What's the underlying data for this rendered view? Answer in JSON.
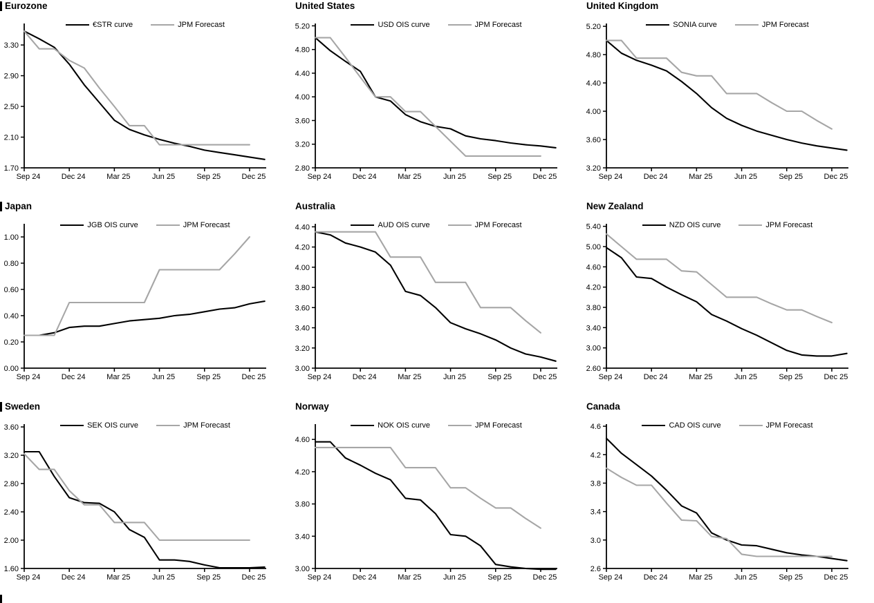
{
  "page": {
    "background": "#ffffff",
    "axis_color": "#000000",
    "ois_line_color": "#000000",
    "forecast_line_color": "#a6a6a6",
    "has_bottom_left_section_stub": true
  },
  "chart_data": [
    {
      "type": "line",
      "title": "Eurozone",
      "has_left_marker": true,
      "x_tick_labels": [
        "Sep 24",
        "Dec 24",
        "Mar 25",
        "Jun 25",
        "Sep 25",
        "Dec 25"
      ],
      "x_tick_months": [
        0,
        3,
        6,
        9,
        12,
        15
      ],
      "y_ticks": [
        1.7,
        2.1,
        2.5,
        2.9,
        3.3
      ],
      "y_decimals": 2,
      "y_axis_min": 1.7,
      "y_axis_top": 3.58,
      "legend_position": "top-center",
      "grid": false,
      "series": [
        {
          "name": "€STR curve",
          "color": "#000000",
          "monthly_values": [
            3.48,
            3.38,
            3.27,
            3.05,
            2.78,
            2.55,
            2.32,
            2.2,
            2.13,
            2.07,
            2.02,
            1.98,
            1.93,
            1.9,
            1.87,
            1.84,
            1.81
          ]
        },
        {
          "name": "JPM Forecast",
          "color": "#a6a6a6",
          "monthly_values": [
            3.48,
            3.25,
            3.25,
            3.1,
            3.0,
            2.74,
            2.5,
            2.25,
            2.25,
            2.0,
            2.0,
            2.0,
            2.0,
            2.0,
            2.0,
            2.0
          ]
        }
      ]
    },
    {
      "type": "line",
      "title": "United States",
      "has_left_marker": false,
      "x_tick_labels": [
        "Sep 24",
        "Dec 24",
        "Mar 25",
        "Jun 25",
        "Sep 25",
        "Dec 25"
      ],
      "x_tick_months": [
        0,
        3,
        6,
        9,
        12,
        15
      ],
      "y_ticks": [
        2.8,
        3.2,
        3.6,
        4.0,
        4.4,
        4.8,
        5.2
      ],
      "y_decimals": 2,
      "y_axis_min": 2.8,
      "y_axis_top": 5.24,
      "legend_position": "top-center",
      "grid": false,
      "series": [
        {
          "name": "USD OIS curve",
          "color": "#000000",
          "monthly_values": [
            5.0,
            4.78,
            4.6,
            4.43,
            4.0,
            3.93,
            3.7,
            3.58,
            3.5,
            3.46,
            3.34,
            3.29,
            3.26,
            3.22,
            3.19,
            3.17,
            3.14
          ]
        },
        {
          "name": "JPM Forecast",
          "color": "#a6a6a6",
          "monthly_values": [
            5.0,
            5.0,
            4.67,
            4.33,
            4.0,
            4.0,
            3.75,
            3.75,
            3.5,
            3.25,
            3.0,
            3.0,
            3.0,
            3.0,
            3.0,
            3.0
          ]
        }
      ]
    },
    {
      "type": "line",
      "title": "United Kingdom",
      "has_left_marker": false,
      "x_tick_labels": [
        "Sep 24",
        "Dec 24",
        "Mar 25",
        "Jun 25",
        "Sep 25",
        "Dec 25"
      ],
      "x_tick_months": [
        0,
        3,
        6,
        9,
        12,
        15
      ],
      "y_ticks": [
        3.2,
        3.6,
        4.0,
        4.4,
        4.8,
        5.2
      ],
      "y_decimals": 2,
      "y_axis_min": 3.2,
      "y_axis_top": 5.24,
      "legend_position": "top-center",
      "grid": false,
      "series": [
        {
          "name": "SONIA curve",
          "color": "#000000",
          "monthly_values": [
            5.0,
            4.82,
            4.72,
            4.65,
            4.57,
            4.42,
            4.25,
            4.05,
            3.9,
            3.8,
            3.72,
            3.66,
            3.6,
            3.55,
            3.51,
            3.48,
            3.45
          ]
        },
        {
          "name": "JPM Forecast",
          "color": "#a6a6a6",
          "monthly_values": [
            5.0,
            5.0,
            4.75,
            4.75,
            4.75,
            4.55,
            4.5,
            4.5,
            4.25,
            4.25,
            4.25,
            4.12,
            4.0,
            4.0,
            3.87,
            3.75
          ]
        }
      ]
    },
    {
      "type": "line",
      "title": "Japan",
      "has_left_marker": true,
      "x_tick_labels": [
        "Sep 24",
        "Dec 24",
        "Mar 25",
        "Jun 25",
        "Sep 25",
        "Dec 25"
      ],
      "x_tick_months": [
        0,
        3,
        6,
        9,
        12,
        15
      ],
      "y_ticks": [
        0.0,
        0.2,
        0.4,
        0.6,
        0.8,
        1.0
      ],
      "y_decimals": 2,
      "y_axis_min": 0.0,
      "y_axis_top": 1.1,
      "legend_position": "top-center",
      "grid": false,
      "series": [
        {
          "name": "JGB OIS curve",
          "color": "#000000",
          "monthly_values": [
            0.25,
            0.25,
            0.27,
            0.31,
            0.32,
            0.32,
            0.34,
            0.36,
            0.37,
            0.38,
            0.4,
            0.41,
            0.43,
            0.45,
            0.46,
            0.49,
            0.51
          ]
        },
        {
          "name": "JPM Forecast",
          "color": "#a6a6a6",
          "monthly_values": [
            0.25,
            0.25,
            0.25,
            0.5,
            0.5,
            0.5,
            0.5,
            0.5,
            0.5,
            0.75,
            0.75,
            0.75,
            0.75,
            0.75,
            0.87,
            1.0
          ]
        }
      ]
    },
    {
      "type": "line",
      "title": "Australia",
      "has_left_marker": false,
      "x_tick_labels": [
        "Sep 24",
        "Dec 24",
        "Mar 25",
        "Jun 25",
        "Sep 25",
        "Dec 25"
      ],
      "x_tick_months": [
        0,
        3,
        6,
        9,
        12,
        15
      ],
      "y_ticks": [
        3.0,
        3.2,
        3.4,
        3.6,
        3.8,
        4.0,
        4.2,
        4.4
      ],
      "y_decimals": 2,
      "y_axis_min": 3.0,
      "y_axis_top": 4.43,
      "legend_position": "top-center",
      "grid": false,
      "series": [
        {
          "name": "AUD OIS curve",
          "color": "#000000",
          "monthly_values": [
            4.35,
            4.32,
            4.24,
            4.2,
            4.15,
            4.02,
            3.76,
            3.72,
            3.6,
            3.45,
            3.39,
            3.34,
            3.28,
            3.2,
            3.14,
            3.11,
            3.07
          ]
        },
        {
          "name": "JPM Forecast",
          "color": "#a6a6a6",
          "monthly_values": [
            4.35,
            4.35,
            4.35,
            4.35,
            4.35,
            4.1,
            4.1,
            4.1,
            3.85,
            3.85,
            3.85,
            3.6,
            3.6,
            3.6,
            3.47,
            3.35
          ]
        }
      ]
    },
    {
      "type": "line",
      "title": "New Zealand",
      "has_left_marker": false,
      "x_tick_labels": [
        "Sep 24",
        "Dec 24",
        "Mar 25",
        "Jun 25",
        "Sep 25",
        "Dec 25"
      ],
      "x_tick_months": [
        0,
        3,
        6,
        9,
        12,
        15
      ],
      "y_ticks": [
        2.6,
        3.0,
        3.4,
        3.8,
        4.2,
        4.6,
        5.0,
        5.4
      ],
      "y_decimals": 2,
      "y_axis_min": 2.6,
      "y_axis_top": 5.45,
      "legend_position": "top-center",
      "grid": false,
      "series": [
        {
          "name": "NZD OIS curve",
          "color": "#000000",
          "monthly_values": [
            4.98,
            4.78,
            4.4,
            4.37,
            4.2,
            4.05,
            3.91,
            3.66,
            3.53,
            3.38,
            3.25,
            3.1,
            2.95,
            2.86,
            2.84,
            2.84,
            2.89
          ]
        },
        {
          "name": "JPM Forecast",
          "color": "#a6a6a6",
          "monthly_values": [
            5.25,
            5.0,
            4.75,
            4.75,
            4.75,
            4.52,
            4.5,
            4.25,
            4.0,
            4.0,
            4.0,
            3.87,
            3.75,
            3.75,
            3.62,
            3.5
          ]
        }
      ]
    },
    {
      "type": "line",
      "title": "Sweden",
      "has_left_marker": true,
      "x_tick_labels": [
        "Sep 24",
        "Dec 24",
        "Mar 25",
        "Jun 25",
        "Sep 25",
        "Dec 25"
      ],
      "x_tick_months": [
        0,
        3,
        6,
        9,
        12,
        15
      ],
      "y_ticks": [
        1.6,
        2.0,
        2.4,
        2.8,
        3.2,
        3.6
      ],
      "y_decimals": 2,
      "y_axis_min": 1.6,
      "y_axis_top": 3.64,
      "legend_position": "top-center",
      "grid": false,
      "series": [
        {
          "name": "SEK OIS curve",
          "color": "#000000",
          "monthly_values": [
            3.25,
            3.25,
            2.9,
            2.6,
            2.53,
            2.52,
            2.4,
            2.15,
            2.04,
            1.72,
            1.72,
            1.7,
            1.65,
            1.61,
            1.61,
            1.61,
            1.62
          ]
        },
        {
          "name": "JPM Forecast",
          "color": "#a6a6a6",
          "monthly_values": [
            3.22,
            3.0,
            3.0,
            2.7,
            2.5,
            2.5,
            2.25,
            2.25,
            2.25,
            2.0,
            2.0,
            2.0,
            2.0,
            2.0,
            2.0,
            2.0
          ]
        }
      ]
    },
    {
      "type": "line",
      "title": "Norway",
      "has_left_marker": false,
      "x_tick_labels": [
        "Sep 24",
        "Dec 24",
        "Mar 25",
        "Jun 25",
        "Sep 25",
        "Dec 25"
      ],
      "x_tick_months": [
        0,
        3,
        6,
        9,
        12,
        15
      ],
      "y_ticks": [
        3.0,
        3.4,
        3.8,
        4.2,
        4.6
      ],
      "y_decimals": 2,
      "y_axis_min": 3.0,
      "y_axis_top": 4.79,
      "legend_position": "top-center",
      "grid": false,
      "series": [
        {
          "name": "NOK OIS curve",
          "color": "#000000",
          "monthly_values": [
            4.57,
            4.57,
            4.37,
            4.28,
            4.18,
            4.1,
            3.87,
            3.85,
            3.68,
            3.42,
            3.4,
            3.28,
            3.05,
            3.02,
            3.0,
            2.99,
            2.99
          ]
        },
        {
          "name": "JPM Forecast",
          "color": "#a6a6a6",
          "monthly_values": [
            4.5,
            4.5,
            4.5,
            4.5,
            4.5,
            4.5,
            4.25,
            4.25,
            4.25,
            4.0,
            4.0,
            3.87,
            3.75,
            3.75,
            3.62,
            3.5
          ]
        }
      ]
    },
    {
      "type": "line",
      "title": "Canada",
      "has_left_marker": false,
      "x_tick_labels": [
        "Sep 24",
        "Dec 24",
        "Mar 25",
        "Jun 25",
        "Sep 25",
        "Dec 25"
      ],
      "x_tick_months": [
        0,
        3,
        6,
        9,
        12,
        15
      ],
      "y_ticks": [
        2.6,
        3.0,
        3.4,
        3.8,
        4.2,
        4.6
      ],
      "y_decimals": 1,
      "y_axis_min": 2.6,
      "y_axis_top": 4.63,
      "legend_position": "top-center",
      "grid": false,
      "series": [
        {
          "name": "CAD OIS curve",
          "color": "#000000",
          "monthly_values": [
            4.43,
            4.22,
            4.06,
            3.9,
            3.7,
            3.48,
            3.38,
            3.1,
            3.0,
            2.93,
            2.92,
            2.87,
            2.82,
            2.79,
            2.77,
            2.74,
            2.71
          ]
        },
        {
          "name": "JPM Forecast",
          "color": "#a6a6a6",
          "monthly_values": [
            4.01,
            3.88,
            3.77,
            3.77,
            3.52,
            3.28,
            3.27,
            3.05,
            3.02,
            2.8,
            2.77,
            2.77,
            2.77,
            2.77,
            2.77,
            2.77
          ]
        }
      ]
    }
  ]
}
